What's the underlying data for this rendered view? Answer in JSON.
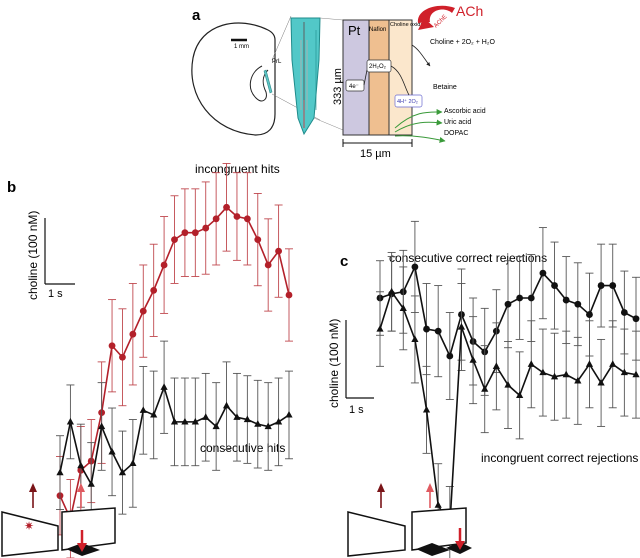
{
  "panels": {
    "a": "a",
    "b": "b",
    "c": "c"
  },
  "diagram": {
    "scale_bar": "1 mm",
    "prl": "PrL",
    "pt": "Pt",
    "nafion": "Nafion",
    "choline_oxidase": "Choline oxidase",
    "depth": "333 µm",
    "width": "15 µm",
    "electrons": "4e⁻",
    "h2o2": "2H₂O₂",
    "protons": "4H⁺ 2O₂",
    "betaine": "Betaine",
    "reaction": "Choline + 2O₂ + H₂O",
    "ache": "AChE",
    "ach": "ACh",
    "interferents": [
      "Ascorbic acid",
      "Uric acid",
      "DOPAC"
    ]
  },
  "colors": {
    "red_series": "#b3202a",
    "black_series": "#111111",
    "error_red": "#c0494f",
    "error_gray": "#555555",
    "pt_fill": "#cdc8e0",
    "nafion_fill": "#efbf90",
    "cox_fill": "#fbe7cc",
    "probe_fill": "#52c8c8"
  },
  "chart_data": [
    {
      "panel": "b",
      "type": "line",
      "ylabel": "choline (100 nM)",
      "scale_x": "1 s",
      "y_domain": [
        0,
        7
      ],
      "x": [
        0,
        1,
        2,
        3,
        4,
        5,
        6,
        7,
        8,
        9,
        10,
        11,
        12,
        13,
        14,
        15,
        16,
        17,
        18,
        19,
        20,
        21,
        22
      ],
      "series": [
        {
          "name": "incongruent hits",
          "marker": "circle",
          "values": [
            0.05,
            -0.45,
            0.6,
            0.8,
            1.85,
            3.3,
            3.05,
            3.55,
            4.05,
            4.5,
            5.05,
            5.6,
            5.75,
            5.75,
            5.85,
            6.05,
            6.3,
            6.1,
            6.05,
            5.6,
            5.05,
            5.35,
            4.4
          ],
          "errors": [
            0.85,
            0.85,
            0.95,
            0.9,
            1.1,
            1.0,
            1.05,
            1.1,
            1.0,
            1.0,
            1.05,
            0.95,
            0.95,
            0.95,
            1.0,
            1.0,
            0.95,
            0.95,
            1.0,
            1.0,
            1.0,
            1.0,
            1.0
          ]
        },
        {
          "name": "consecutive hits",
          "marker": "triangle",
          "values": [
            0.55,
            1.65,
            0.7,
            0.3,
            1.55,
            1.0,
            0.55,
            0.75,
            1.9,
            1.8,
            2.4,
            1.65,
            1.65,
            1.65,
            1.75,
            1.55,
            2.0,
            1.75,
            1.7,
            1.6,
            1.55,
            1.65,
            1.8
          ],
          "errors": [
            0.8,
            0.8,
            0.9,
            0.9,
            0.95,
            0.95,
            0.9,
            0.95,
            0.95,
            0.95,
            1.0,
            0.95,
            0.95,
            0.95,
            0.95,
            0.95,
            0.95,
            0.95,
            0.95,
            0.95,
            0.95,
            0.95,
            0.95
          ]
        }
      ]
    },
    {
      "panel": "c",
      "type": "line",
      "ylabel": "choline (100 nM)",
      "scale_x": "1 s",
      "y_domain": [
        0,
        7
      ],
      "x": [
        0,
        1,
        2,
        3,
        4,
        5,
        6,
        7,
        8,
        9,
        10,
        11,
        12,
        13,
        14,
        15,
        16,
        17,
        18,
        19,
        20,
        21,
        22
      ],
      "series": [
        {
          "name": "consecutive correct rejections",
          "marker": "circle",
          "values": [
            5.6,
            5.7,
            5.75,
            6.35,
            4.85,
            4.8,
            4.2,
            5.2,
            4.55,
            4.3,
            4.8,
            5.45,
            5.6,
            5.6,
            6.2,
            5.9,
            5.55,
            5.45,
            5.2,
            5.9,
            5.9,
            5.25,
            5.1
          ],
          "errors": [
            0.9,
            0.9,
            1.0,
            1.1,
            1.1,
            1.1,
            1.05,
            1.1,
            1.05,
            1.05,
            1.0,
            1.05,
            1.0,
            1.05,
            1.1,
            1.05,
            1.05,
            1.0,
            1.0,
            1.0,
            1.0,
            1.0,
            1.0
          ]
        },
        {
          "name": "incongruent correct rejections",
          "marker": "triangle",
          "values": [
            4.85,
            5.75,
            5.35,
            4.6,
            2.9,
            0.6,
            0.1,
            4.9,
            4.1,
            3.4,
            3.95,
            3.5,
            3.25,
            4.0,
            3.8,
            3.7,
            3.75,
            3.6,
            4.0,
            3.55,
            4.0,
            3.8,
            3.75
          ],
          "errors": [
            0.9,
            0.95,
            1.0,
            1.05,
            1.05,
            1.0,
            0.95,
            1.05,
            1.05,
            1.05,
            1.05,
            1.05,
            1.05,
            1.05,
            1.05,
            1.05,
            1.05,
            1.05,
            1.05,
            1.05,
            1.05,
            1.05,
            1.05
          ]
        }
      ]
    }
  ]
}
